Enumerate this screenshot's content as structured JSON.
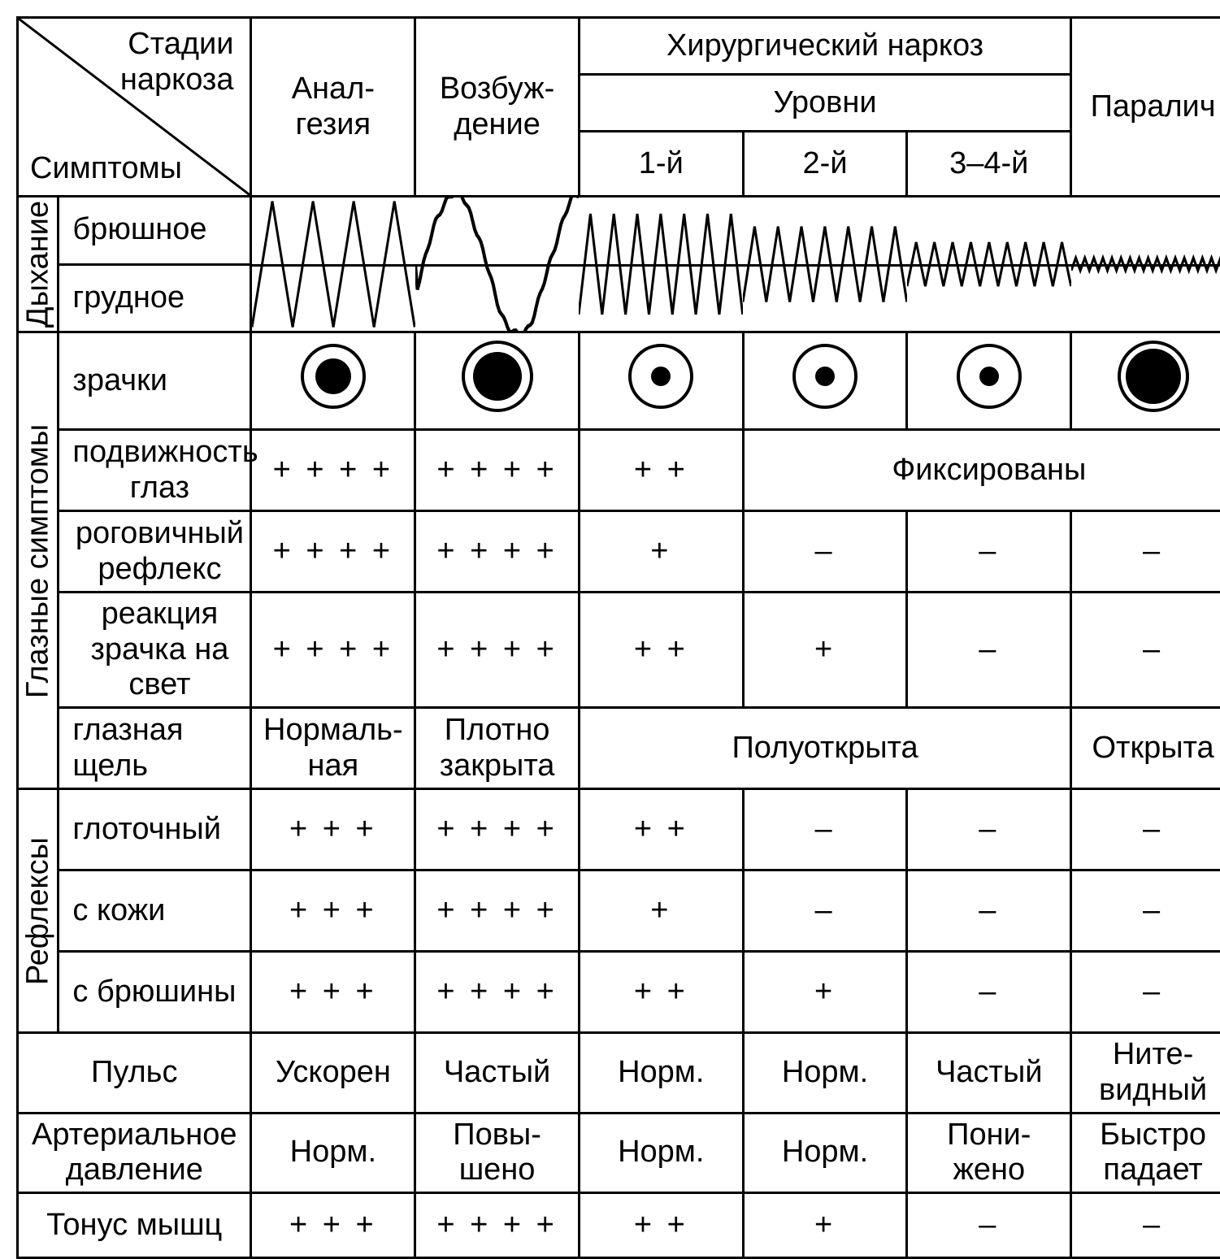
{
  "header": {
    "diag_top": "Стадии наркоза",
    "diag_bot": "Симптомы",
    "analgesia": "Анал-\nгезия",
    "excitation": "Возбуж-\nдение",
    "surgical": "Хирургический наркоз",
    "levels": "Уровни",
    "l1": "1-й",
    "l2": "2-й",
    "l34": "3–4-й",
    "paralysis": "Паралич"
  },
  "groups": {
    "breathing": "Дыхание",
    "eye": "Глазные симптомы",
    "reflexes": "Рефлексы"
  },
  "rows": {
    "abdominal": "брюшное",
    "thoracic": "грудное",
    "pupils": "зрачки",
    "mobility": "подвижность глаз",
    "corneal": "роговичный рефлекс",
    "light": "реакция зрачка на свет",
    "fissure": "глазная щель",
    "pharyngeal": "глоточный",
    "skin": "с кожи",
    "peritoneum": "с брюшины",
    "pulse": "Пульс",
    "bp": "Артериальное давление",
    "tone": "Тонус мышц"
  },
  "pupils": [
    {
      "outer": 38,
      "inner": 22
    },
    {
      "outer": 42,
      "inner": 30
    },
    {
      "outer": 38,
      "inner": 12
    },
    {
      "outer": 38,
      "inner": 12
    },
    {
      "outer": 38,
      "inner": 12
    },
    {
      "outer": 42,
      "inner": 34
    }
  ],
  "mobility": [
    "+ + + +",
    "+ + + +",
    "+ +",
    "Фиксированы"
  ],
  "corneal": [
    "+ + + +",
    "+ + + +",
    "+",
    "–",
    "–",
    "–"
  ],
  "light": [
    "+ + + +",
    "+ + + +",
    "+ +",
    "+",
    "–",
    "–"
  ],
  "fissure": [
    "Нормаль-\nная",
    "Плотно\nзакрыта",
    "Полуоткрыта",
    "Открыта"
  ],
  "pharyngeal": [
    "+ + +",
    "+ + + +",
    "+ +",
    "–",
    "–",
    "–"
  ],
  "skin": [
    "+ + +",
    "+ + + +",
    "+",
    "–",
    "–",
    "–"
  ],
  "peritoneum": [
    "+ + +",
    "+ + + +",
    "+ +",
    "+",
    "–",
    "–"
  ],
  "pulse": [
    "Ускорен",
    "Частый",
    "Норм.",
    "Норм.",
    "Частый",
    "Ните-\nвидный"
  ],
  "bp": [
    "Норм.",
    "Повы-\nшено",
    "Норм.",
    "Норм.",
    "Пони-\nжено",
    "Быстро\nпадает"
  ],
  "tone": [
    "+ + +",
    "+ + + +",
    "+ +",
    "+",
    "–",
    "–"
  ],
  "waves": [
    {
      "type": "zig",
      "cycles": 4,
      "amp": 1.0,
      "rough": false
    },
    {
      "type": "irreg",
      "amp": 1.1,
      "rough": true
    },
    {
      "type": "zig",
      "cycles": 7,
      "amp": 0.8,
      "rough": false
    },
    {
      "type": "zig",
      "cycles": 7,
      "amp": 0.6,
      "rough": false
    },
    {
      "type": "zig",
      "cycles": 9,
      "amp": 0.35,
      "rough": false
    },
    {
      "type": "zig",
      "cycles": 18,
      "amp": 0.1,
      "rough": false
    }
  ],
  "style": {
    "stroke": "#000000",
    "stroke_width": 3,
    "font_color": "#000000",
    "background": "#ffffff",
    "pupil_stroke_width": 4
  }
}
